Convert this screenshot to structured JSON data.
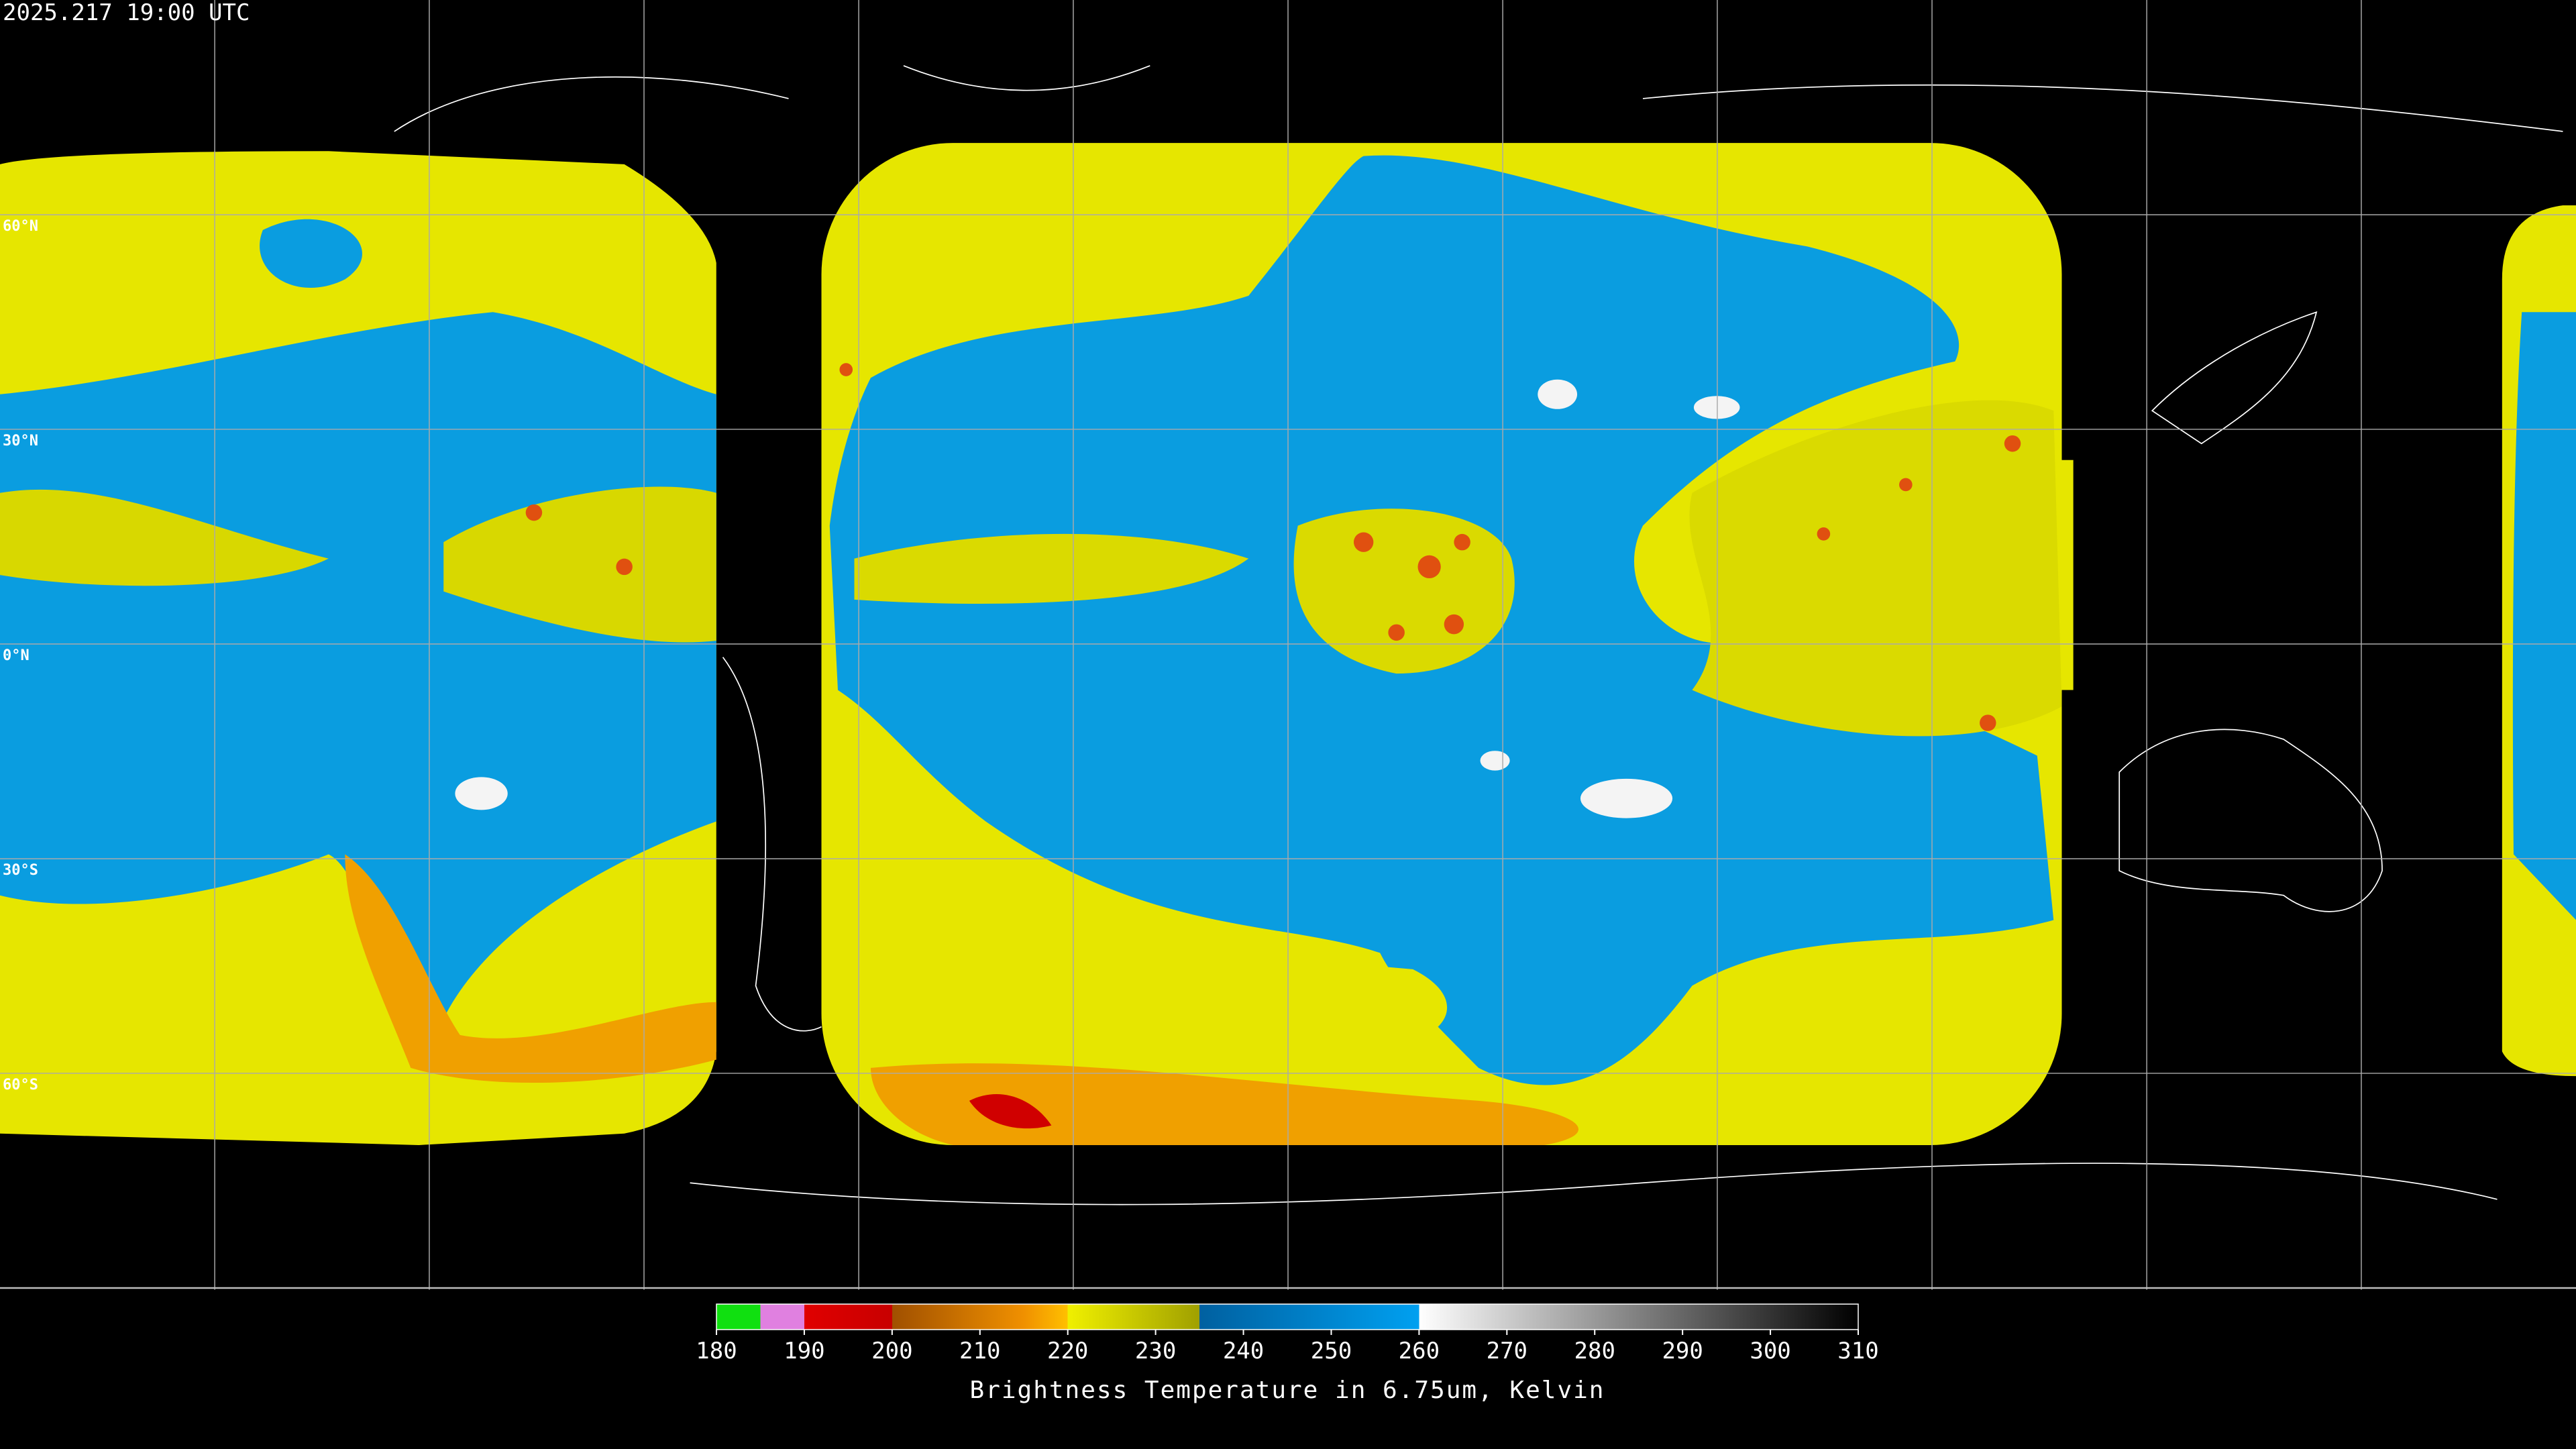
{
  "header": {
    "timestamp": "2025.217 19:00 UTC"
  },
  "map": {
    "latitude_labels": [
      "60°N",
      "30°N",
      "0°N",
      "30°S",
      "60°S"
    ]
  },
  "colorbar": {
    "range": [
      180,
      310
    ],
    "ticks": [
      180,
      190,
      200,
      210,
      220,
      230,
      240,
      250,
      260,
      270,
      280,
      290,
      300,
      310
    ],
    "label": "Brightness Temperature in 6.75um, Kelvin",
    "stops": [
      {
        "value": 180,
        "color": "#10e010"
      },
      {
        "value": 185,
        "color": "#10e010"
      },
      {
        "value": 185,
        "color": "#e080e0"
      },
      {
        "value": 190,
        "color": "#e080e0"
      },
      {
        "value": 190,
        "color": "#e00000"
      },
      {
        "value": 200,
        "color": "#c80000"
      },
      {
        "value": 200,
        "color": "#a05000"
      },
      {
        "value": 215,
        "color": "#f09000"
      },
      {
        "value": 220,
        "color": "#ffc000"
      },
      {
        "value": 220,
        "color": "#f0f000"
      },
      {
        "value": 235,
        "color": "#a0a000"
      },
      {
        "value": 235,
        "color": "#0060a0"
      },
      {
        "value": 260,
        "color": "#00a0f0"
      },
      {
        "value": 260,
        "color": "#ffffff"
      },
      {
        "value": 310,
        "color": "#000000"
      }
    ]
  }
}
